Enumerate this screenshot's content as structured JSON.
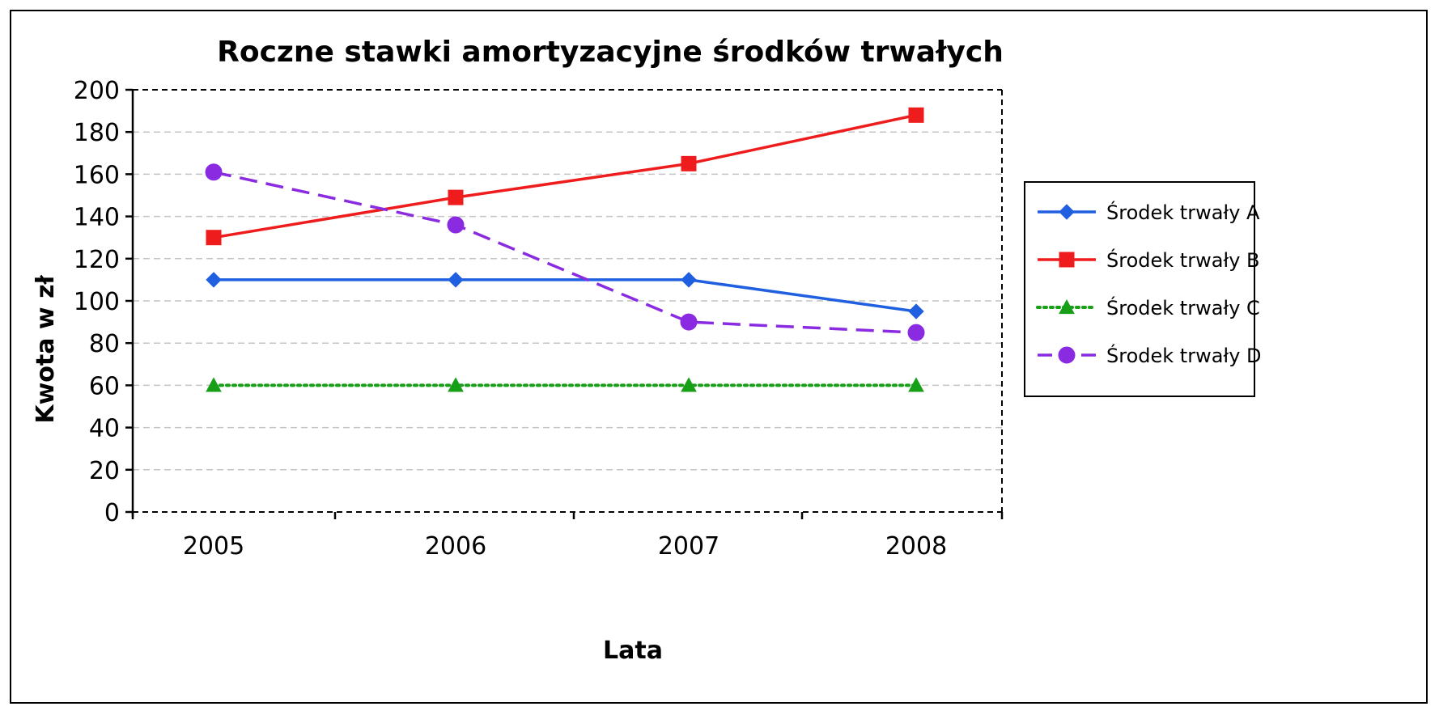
{
  "chart_data": {
    "type": "line",
    "title": "Roczne stawki amortyzacyjne środków trwałych",
    "xlabel": "Lata",
    "ylabel": "Kwota w zł",
    "categories": [
      "2005",
      "2006",
      "2007",
      "2008"
    ],
    "ylim": [
      0,
      200
    ],
    "yticks": [
      0,
      20,
      40,
      60,
      80,
      100,
      120,
      140,
      160,
      180,
      200
    ],
    "grid": true,
    "legend_position": "right",
    "series": [
      {
        "name": "Środek trwały A",
        "values": [
          110,
          110,
          110,
          95
        ],
        "color": "#1f5fe0",
        "marker": "diamond",
        "line_style": "solid"
      },
      {
        "name": "Środek trwały B",
        "values": [
          130,
          149,
          165,
          188
        ],
        "color": "#ee1c1c",
        "marker": "square",
        "line_style": "solid"
      },
      {
        "name": "Środek trwały C",
        "values": [
          60,
          60,
          60,
          60
        ],
        "color": "#17a017",
        "marker": "triangle",
        "line_style": "dotted"
      },
      {
        "name": "Środek trwały D",
        "values": [
          161,
          136,
          90,
          85
        ],
        "color": "#8a2be2",
        "marker": "circle",
        "line_style": "dashed"
      }
    ]
  }
}
